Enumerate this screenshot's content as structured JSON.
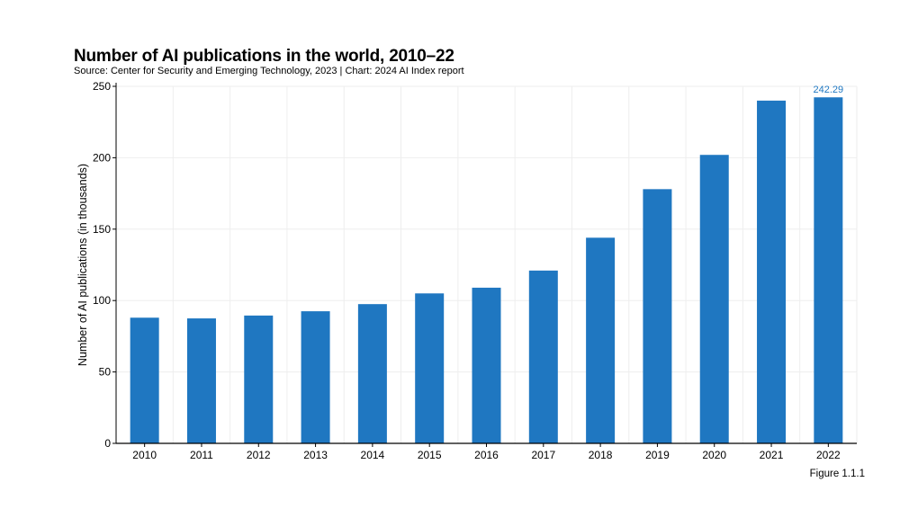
{
  "chart_data": {
    "type": "bar",
    "title": "Number of AI publications in the world, 2010–22",
    "subtitle": "Source: Center for Security and Emerging Technology, 2023 | Chart: 2024 AI Index report",
    "xlabel": "",
    "ylabel": "Number of AI publications (in thousands)",
    "categories": [
      "2010",
      "2011",
      "2012",
      "2013",
      "2014",
      "2015",
      "2016",
      "2017",
      "2018",
      "2019",
      "2020",
      "2021",
      "2022"
    ],
    "values": [
      88,
      87.5,
      89.5,
      92.5,
      97.5,
      105,
      109,
      121,
      144,
      178,
      202,
      240,
      242.29
    ],
    "ylim": [
      0,
      250
    ],
    "yticks": [
      0,
      50,
      100,
      150,
      200,
      250
    ],
    "ytick_labels": [
      "0",
      "50",
      "100",
      "150",
      "200",
      "250"
    ],
    "grid": true,
    "annotations": [
      {
        "category": "2022",
        "text": "242.29"
      }
    ],
    "colors": {
      "bar": "#1f77c1",
      "annotation": "#1f77c1",
      "grid": "#eeeeee",
      "axis": "#000000"
    }
  },
  "figure_label": "Figure 1.1.1"
}
